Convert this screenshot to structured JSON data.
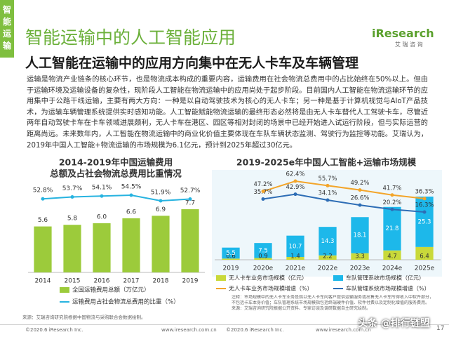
{
  "header": {
    "sidebar": "智能运输",
    "title": "智能运输中的人工智能应用",
    "subtitle": "人工智能在运输中的应用方向集中在无人卡车及车辆管理",
    "logo": "iResearch",
    "logo_sub": "艾 瑞 咨 询"
  },
  "body": "运输是物流产业链条的核心环节，也是物流成本构成的重要内容，运输费用在社会物流总费用中的占比始终在50%以上。但由于运输环境及运输设备的复杂性，现阶段人工智能在物流运输中的应用尚处于起步阶段。目前国内人工智能在物流运输环节的应用集中于公路干线运输，主要有两大方向：一种是以自动驾驶技术为核心的无人卡车；另一种是基于计算机视觉与AIoT产品技术，为运输车辆管理系统提供实时感知功能。人工智能赋能物流运输的最终形态必然将是由无人卡车替代人工驾驶卡车，尽管近两年自动驾驶卡车在卡车领域进展颇利，无人卡车在港区、园区等相对封闭的场景中已经开始进入试运行阶段，但与实际运营的距离尚远。未来数年内，人工智能在物流运输中的商业化价值主要体现在车队车辆状态监测、驾驶行为监控等功能。艾瑞认为，2019年中国人工智能+物流运输的市场规模为6.1亿元，预计到2025年超过30亿元。",
  "chart_data": [
    {
      "type": "bar-line",
      "title": "2014-2019年中国运输费用总额及占社会物流总费用比重情况",
      "categories": [
        "2014",
        "2015",
        "2016",
        "2017",
        "2018",
        "2019"
      ],
      "series": [
        {
          "name": "全国运输费用总额（万亿元）",
          "color": "#9ccb3b",
          "kind": "bar",
          "values": [
            5.6,
            5.8,
            6.0,
            6.6,
            6.9,
            7.7
          ],
          "value_labels": [
            "5.6",
            "5.8",
            "6.0",
            "6.6",
            "6.9",
            "7.7"
          ]
        },
        {
          "name": "运输费用占社会物流总费用的比重（%）",
          "color": "#27b3e0",
          "kind": "line",
          "values": [
            52.8,
            53.7,
            54.1,
            54.5,
            51.9,
            52.7
          ],
          "value_labels": [
            "52.8%",
            "53.7%",
            "54.1%",
            "54.5%",
            "51.9%",
            "52.7%"
          ]
        }
      ],
      "source": "来源：艾瑞咨询研究院根据中国物流与采购联合会数据绘制。"
    },
    {
      "type": "stacked-bar-line",
      "title": "2019-2025e年中国人工智能+运输市场规模",
      "categories": [
        "2019",
        "2020e",
        "2021e",
        "2022e",
        "2023e",
        "2024e",
        "2025e"
      ],
      "series": [
        {
          "name": "无人卡车业务市场规模（亿元）",
          "color": "#c9d93a",
          "kind": "bar",
          "values": [
            0.6,
            0.9,
            1.4,
            2.2,
            3.3,
            4.7,
            6.4
          ]
        },
        {
          "name": "车队管理系统市场规模（亿元）",
          "color": "#1db8ea",
          "kind": "bar",
          "values": [
            5.5,
            7.5,
            10.7,
            14.3,
            18.1,
            21.8,
            25.3
          ]
        },
        {
          "name": "无人卡车业务市场规模增速（%）",
          "color": "#f3a52a",
          "kind": "line",
          "values": [
            null,
            47.2,
            62.4,
            55.7,
            49.2,
            41.7,
            36.3
          ],
          "value_labels": [
            null,
            "47.2%",
            "62.4%",
            "55.7%",
            "49.2%",
            "41.7%",
            "36.3%"
          ]
        },
        {
          "name": "车队管理系统市场规模增速（%）",
          "color": "#2d6db5",
          "kind": "line",
          "values": [
            null,
            35.7,
            42.9,
            34.1,
            26.6,
            20.2,
            16.3
          ],
          "value_labels": [
            null,
            "35.7%",
            "42.9%",
            "34.1%",
            "26.6%",
            "20.2%",
            "16.3%"
          ]
        }
      ],
      "note": "注释：市场规模中的无人卡车业务是指以无人卡车向客户提供运输服务或出售无人卡车所得收入中软件部分，不包括卡车本身价值；车队管理系统市场规模指包括终端硬件价值、软件付费以及定制化增值的服务费用。",
      "source": "来源：艾瑞咨询研究院根据公开资料、专家访谈及调研数据自主研究绘制。"
    }
  ],
  "footer": {
    "copyright_left": "©2020.6 iResearch Inc.",
    "url_left": "www.iresearch.com.cn",
    "copyright_right": "©2020.6 iResearch Inc.",
    "url_right": "www.iresearch.com.cn",
    "watermark": "头条 @排行链盟",
    "page": "17"
  }
}
